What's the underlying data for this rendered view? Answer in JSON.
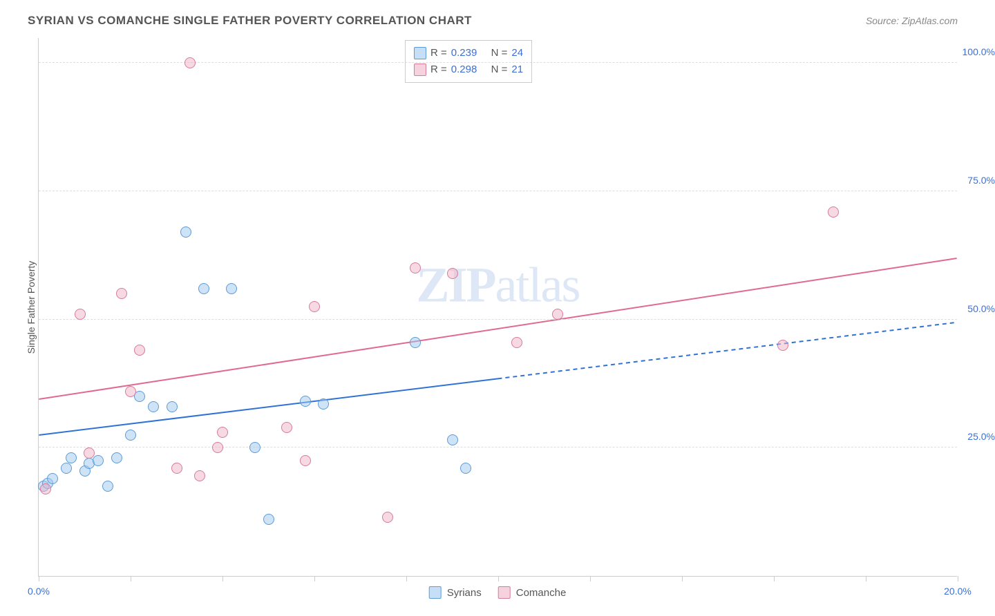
{
  "title": "SYRIAN VS COMANCHE SINGLE FATHER POVERTY CORRELATION CHART",
  "source": "Source: ZipAtlas.com",
  "ylabel": "Single Father Poverty",
  "watermark_bold": "ZIP",
  "watermark_light": "atlas",
  "chart": {
    "type": "scatter",
    "xlim": [
      0,
      20
    ],
    "ylim": [
      0,
      105
    ],
    "x_ticks": [
      0,
      2,
      4,
      6,
      8,
      10,
      12,
      14,
      16,
      18,
      20
    ],
    "x_tick_labels": {
      "0": "0.0%",
      "20": "20.0%"
    },
    "y_gridlines": [
      25,
      50,
      75,
      100
    ],
    "y_tick_labels": {
      "25": "25.0%",
      "50": "50.0%",
      "75": "75.0%",
      "100": "100.0%"
    },
    "grid_color": "#dddddd",
    "axis_color": "#cccccc",
    "background_color": "#ffffff",
    "label_color": "#3b6fd6",
    "marker_size": 16,
    "series": [
      {
        "name": "Syrians",
        "fill_color": "rgba(160,200,240,0.5)",
        "stroke_color": "#5a9bd8",
        "r_value": "0.239",
        "n_value": "24",
        "trend": {
          "solid": {
            "x1": 0,
            "y1": 27.5,
            "x2": 10,
            "y2": 38.5
          },
          "dashed": {
            "x1": 10,
            "y1": 38.5,
            "x2": 20,
            "y2": 49.5
          },
          "color": "#2f72d6",
          "width": 2
        },
        "points": [
          {
            "x": 0.1,
            "y": 17.5
          },
          {
            "x": 0.2,
            "y": 18
          },
          {
            "x": 0.3,
            "y": 19
          },
          {
            "x": 0.6,
            "y": 21
          },
          {
            "x": 0.7,
            "y": 23
          },
          {
            "x": 1.0,
            "y": 20.5
          },
          {
            "x": 1.1,
            "y": 22
          },
          {
            "x": 1.3,
            "y": 22.5
          },
          {
            "x": 1.5,
            "y": 17.5
          },
          {
            "x": 1.7,
            "y": 23
          },
          {
            "x": 2.0,
            "y": 27.5
          },
          {
            "x": 2.2,
            "y": 35
          },
          {
            "x": 2.5,
            "y": 33
          },
          {
            "x": 2.9,
            "y": 33
          },
          {
            "x": 3.2,
            "y": 67
          },
          {
            "x": 3.6,
            "y": 56
          },
          {
            "x": 4.2,
            "y": 56
          },
          {
            "x": 4.7,
            "y": 25
          },
          {
            "x": 5.0,
            "y": 11
          },
          {
            "x": 5.8,
            "y": 34
          },
          {
            "x": 6.2,
            "y": 33.5
          },
          {
            "x": 8.2,
            "y": 45.5
          },
          {
            "x": 9.0,
            "y": 26.5
          },
          {
            "x": 9.3,
            "y": 21
          }
        ]
      },
      {
        "name": "Comanche",
        "fill_color": "rgba(240,180,200,0.5)",
        "stroke_color": "#d87a9a",
        "r_value": "0.298",
        "n_value": "21",
        "trend": {
          "solid": {
            "x1": 0,
            "y1": 34.5,
            "x2": 20,
            "y2": 62
          },
          "dashed": null,
          "color": "#e06a8e",
          "width": 2
        },
        "points": [
          {
            "x": 0.15,
            "y": 17
          },
          {
            "x": 0.9,
            "y": 51
          },
          {
            "x": 1.1,
            "y": 24
          },
          {
            "x": 1.8,
            "y": 55
          },
          {
            "x": 2.0,
            "y": 36
          },
          {
            "x": 2.2,
            "y": 44
          },
          {
            "x": 3.0,
            "y": 21
          },
          {
            "x": 3.3,
            "y": 100
          },
          {
            "x": 3.5,
            "y": 19.5
          },
          {
            "x": 3.9,
            "y": 25
          },
          {
            "x": 4.0,
            "y": 28
          },
          {
            "x": 5.4,
            "y": 29
          },
          {
            "x": 5.8,
            "y": 22.5
          },
          {
            "x": 6.0,
            "y": 52.5
          },
          {
            "x": 7.6,
            "y": 11.5
          },
          {
            "x": 8.2,
            "y": 60
          },
          {
            "x": 9.0,
            "y": 59
          },
          {
            "x": 10.4,
            "y": 45.5
          },
          {
            "x": 11.3,
            "y": 51
          },
          {
            "x": 16.2,
            "y": 45
          },
          {
            "x": 17.3,
            "y": 71
          }
        ]
      }
    ],
    "legend_labels": {
      "r": "R =",
      "n": "N ="
    }
  }
}
